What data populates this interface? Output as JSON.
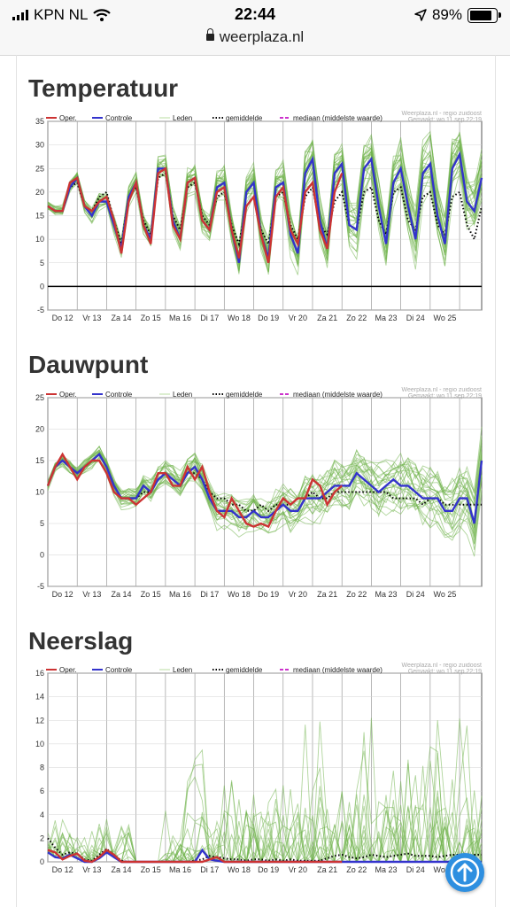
{
  "status_bar": {
    "carrier": "KPN NL",
    "time": "22:44",
    "battery": "89%",
    "url": "weerplaza.nl"
  },
  "charts": [
    {
      "id": "temp",
      "heading": "Temperatuur",
      "ylim": [
        -5,
        35
      ],
      "yticks": [
        -5,
        0,
        5,
        10,
        15,
        20,
        25,
        30,
        35
      ],
      "zero_line": true,
      "members_spread": 5,
      "members_bias": 0,
      "members_count": 26,
      "members_floor": null
    },
    {
      "id": "dew",
      "heading": "Dauwpunt",
      "ylim": [
        -5,
        25
      ],
      "yticks": [
        -5,
        0,
        5,
        10,
        15,
        20,
        25
      ],
      "zero_line": false,
      "members_spread": 4.2,
      "members_bias": 0,
      "members_count": 26,
      "members_floor": null
    },
    {
      "id": "rain",
      "heading": "Neerslag",
      "ylim": [
        0,
        16
      ],
      "yticks": [
        0,
        2,
        4,
        6,
        8,
        10,
        12,
        14,
        16
      ],
      "zero_line": false,
      "members_spread": 0,
      "members_bias": 0,
      "members_count": 22,
      "members_floor": 0
    }
  ],
  "chart_meta": {
    "source": "Weerplaza.nl - regio zuidoost",
    "made": "Gemaakt: wo 11 sep 22:19",
    "days": [
      "Do 12",
      "Vr 13",
      "Za 14",
      "Zo 15",
      "Ma 16",
      "Di 17",
      "Wo 18",
      "Do 19",
      "Vr 20",
      "Za 21",
      "Zo 22",
      "Ma 23",
      "Di 24",
      "Wo 25"
    ],
    "legend": [
      {
        "label": "Oper.",
        "color": "#cc3333",
        "style": "solid"
      },
      {
        "label": "Controle",
        "color": "#3333cc",
        "style": "solid"
      },
      {
        "label": "Leden",
        "color": "#b9dca0",
        "style": "thin"
      },
      {
        "label": "gemiddelde",
        "color": "#000000",
        "style": "dotted"
      },
      {
        "label": "mediaan (middelste waarde)",
        "color": "#cc33cc",
        "style": "dashed"
      }
    ],
    "colors": {
      "oper": "#cc3333",
      "controle": "#3333cc",
      "leden": "#6fb24a",
      "mean": "#000000"
    }
  },
  "chart_data": [
    {
      "type": "line",
      "title": "Temperatuur",
      "x_unit": "days from 12 sep 00:00 (6-hourly)",
      "ylim": [
        -5,
        35
      ],
      "series": [
        {
          "name": "Oper.",
          "start": 0,
          "values": [
            17,
            16,
            16,
            22,
            23,
            17,
            16,
            18,
            19,
            14,
            7,
            18,
            22,
            13,
            9,
            24,
            25,
            13,
            10,
            22,
            23,
            14,
            12,
            20,
            21,
            12,
            6,
            17,
            19,
            11,
            5,
            19,
            21,
            12,
            9,
            20,
            22,
            12,
            8,
            20,
            24
          ]
        },
        {
          "name": "Controle",
          "start": 0,
          "values": [
            17,
            16,
            16,
            21,
            23,
            17,
            15,
            18,
            18,
            13,
            8,
            19,
            22,
            13,
            10,
            25,
            25,
            14,
            10,
            22,
            23,
            14,
            12,
            21,
            22,
            12,
            5,
            20,
            22,
            11,
            6,
            21,
            22,
            11,
            7,
            24,
            27,
            14,
            8,
            24,
            26,
            13,
            12,
            25,
            27,
            17,
            9,
            22,
            25,
            17,
            10,
            24,
            26,
            15,
            9,
            25,
            28,
            18,
            16,
            23
          ]
        },
        {
          "name": "gemiddelde",
          "start": 0,
          "values": [
            17,
            16,
            16,
            21,
            22,
            17,
            16,
            19,
            20,
            14,
            9,
            19,
            21,
            14,
            11,
            23,
            24,
            15,
            12,
            21,
            22,
            15,
            13,
            19,
            20,
            13,
            9,
            17,
            19,
            12,
            9,
            19,
            20,
            13,
            10,
            19,
            21,
            13,
            11,
            18,
            20,
            13,
            12,
            20,
            21,
            14,
            11,
            20,
            21,
            14,
            12,
            19,
            20,
            13,
            11,
            19,
            20,
            13,
            10,
            17
          ]
        }
      ]
    },
    {
      "type": "line",
      "title": "Dauwpunt",
      "x_unit": "days from 12 sep 00:00 (6-hourly)",
      "ylim": [
        -5,
        25
      ],
      "series": [
        {
          "name": "Oper.",
          "start": 0,
          "values": [
            11,
            14,
            16,
            14,
            12,
            14,
            15,
            15,
            13,
            10,
            9,
            9,
            8,
            9,
            10,
            13,
            13,
            11,
            11,
            14,
            12,
            14,
            10,
            7,
            6,
            9,
            7,
            5,
            4.5,
            5,
            4.5,
            7,
            9,
            8,
            9,
            9,
            12,
            11,
            8,
            10,
            11
          ]
        },
        {
          "name": "Controle",
          "start": 0,
          "values": [
            11,
            14,
            15,
            14,
            13,
            14,
            15,
            16,
            14,
            11,
            9,
            9,
            9,
            11,
            10,
            12,
            13,
            12,
            11,
            13,
            14,
            12,
            9,
            7,
            7,
            7,
            6,
            6,
            7,
            6,
            6,
            7,
            8,
            7,
            7,
            9,
            9,
            9,
            10,
            11,
            11,
            11,
            13,
            12,
            11,
            10,
            11,
            12,
            11,
            11,
            10,
            9,
            9,
            9,
            7,
            7,
            9,
            9,
            5,
            15
          ]
        },
        {
          "name": "gemiddelde",
          "start": 0,
          "values": [
            11,
            14,
            15,
            14,
            13,
            14,
            15,
            15,
            13,
            10,
            9,
            9,
            9,
            10,
            10,
            12,
            13,
            12,
            11,
            13,
            13,
            12,
            10,
            9,
            9,
            8,
            8,
            7,
            7,
            8,
            7,
            8,
            8,
            8,
            9,
            9,
            10,
            9,
            9,
            10,
            10,
            10,
            10,
            10,
            10,
            10,
            10,
            9,
            9,
            9,
            9,
            8,
            9,
            9,
            8,
            8,
            8,
            8,
            8,
            8
          ]
        }
      ]
    },
    {
      "type": "line",
      "title": "Neerslag",
      "x_unit": "days from 12 sep 00:00 (6-hourly)",
      "ylim": [
        0,
        16
      ],
      "series": [
        {
          "name": "Oper.",
          "start": 0,
          "values": [
            1,
            0.8,
            0.2,
            0.5,
            0.7,
            0.1,
            0,
            0.4,
            1,
            0.6,
            0,
            0,
            0,
            0,
            0,
            0,
            0,
            0,
            0,
            0,
            0,
            0,
            0.2,
            0.4,
            0,
            0,
            0,
            0,
            0,
            0,
            0,
            0,
            0,
            0,
            0,
            0,
            0,
            0,
            0,
            0,
            0
          ]
        },
        {
          "name": "Controle",
          "start": 0,
          "values": [
            0.8,
            0.4,
            0.3,
            0.6,
            0.3,
            0,
            0,
            0.3,
            0.8,
            0.4,
            0,
            0,
            0,
            0,
            0,
            0,
            0,
            0,
            0,
            0,
            0,
            1,
            0.2,
            0.1,
            0,
            0,
            0,
            0,
            0,
            0,
            0,
            0,
            0,
            0,
            0,
            0,
            0,
            0,
            0,
            0,
            0,
            0,
            0,
            0,
            0,
            0,
            0,
            0,
            0,
            0,
            0,
            0,
            0,
            0,
            0,
            0,
            0,
            0,
            0,
            0
          ]
        },
        {
          "name": "gemiddelde",
          "start": 0,
          "values": [
            2,
            1.2,
            0.6,
            0.8,
            0.7,
            0.2,
            0.1,
            0.6,
            1.1,
            0.6,
            0.1,
            0,
            0,
            0,
            0,
            0,
            0,
            0,
            0,
            0,
            0.1,
            0.2,
            0.5,
            0.4,
            0.3,
            0.2,
            0.2,
            0.1,
            0.2,
            0.2,
            0.1,
            0.2,
            0.1,
            0.2,
            0.1,
            0.1,
            0.1,
            0.1,
            0.3,
            0.5,
            0.6,
            0.4,
            0.3,
            0.4,
            0.6,
            0.5,
            0.4,
            0.5,
            0.6,
            0.7,
            0.5,
            0.5,
            0.5,
            0.4,
            0.5,
            0.6,
            0.6,
            0.5,
            0.6,
            0.6
          ]
        }
      ]
    }
  ]
}
